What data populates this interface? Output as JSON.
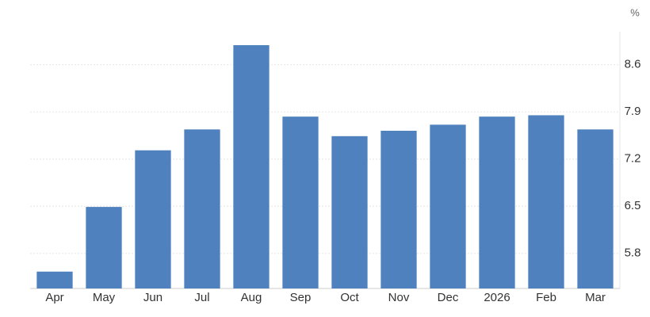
{
  "chart_data": {
    "type": "bar",
    "unit": "%",
    "categories": [
      "Apr",
      "May",
      "Jun",
      "Jul",
      "Aug",
      "Sep",
      "Oct",
      "Nov",
      "Dec",
      "2026",
      "Feb",
      "Mar"
    ],
    "values": [
      5.53,
      6.49,
      7.33,
      7.64,
      8.89,
      7.83,
      7.54,
      7.62,
      7.71,
      7.83,
      7.85,
      7.64
    ],
    "color": "#4e81bd",
    "ylim": [
      5.28,
      9.09
    ],
    "yticks": [
      5.8,
      6.5,
      7.2,
      7.9,
      8.6
    ],
    "grid": true
  }
}
